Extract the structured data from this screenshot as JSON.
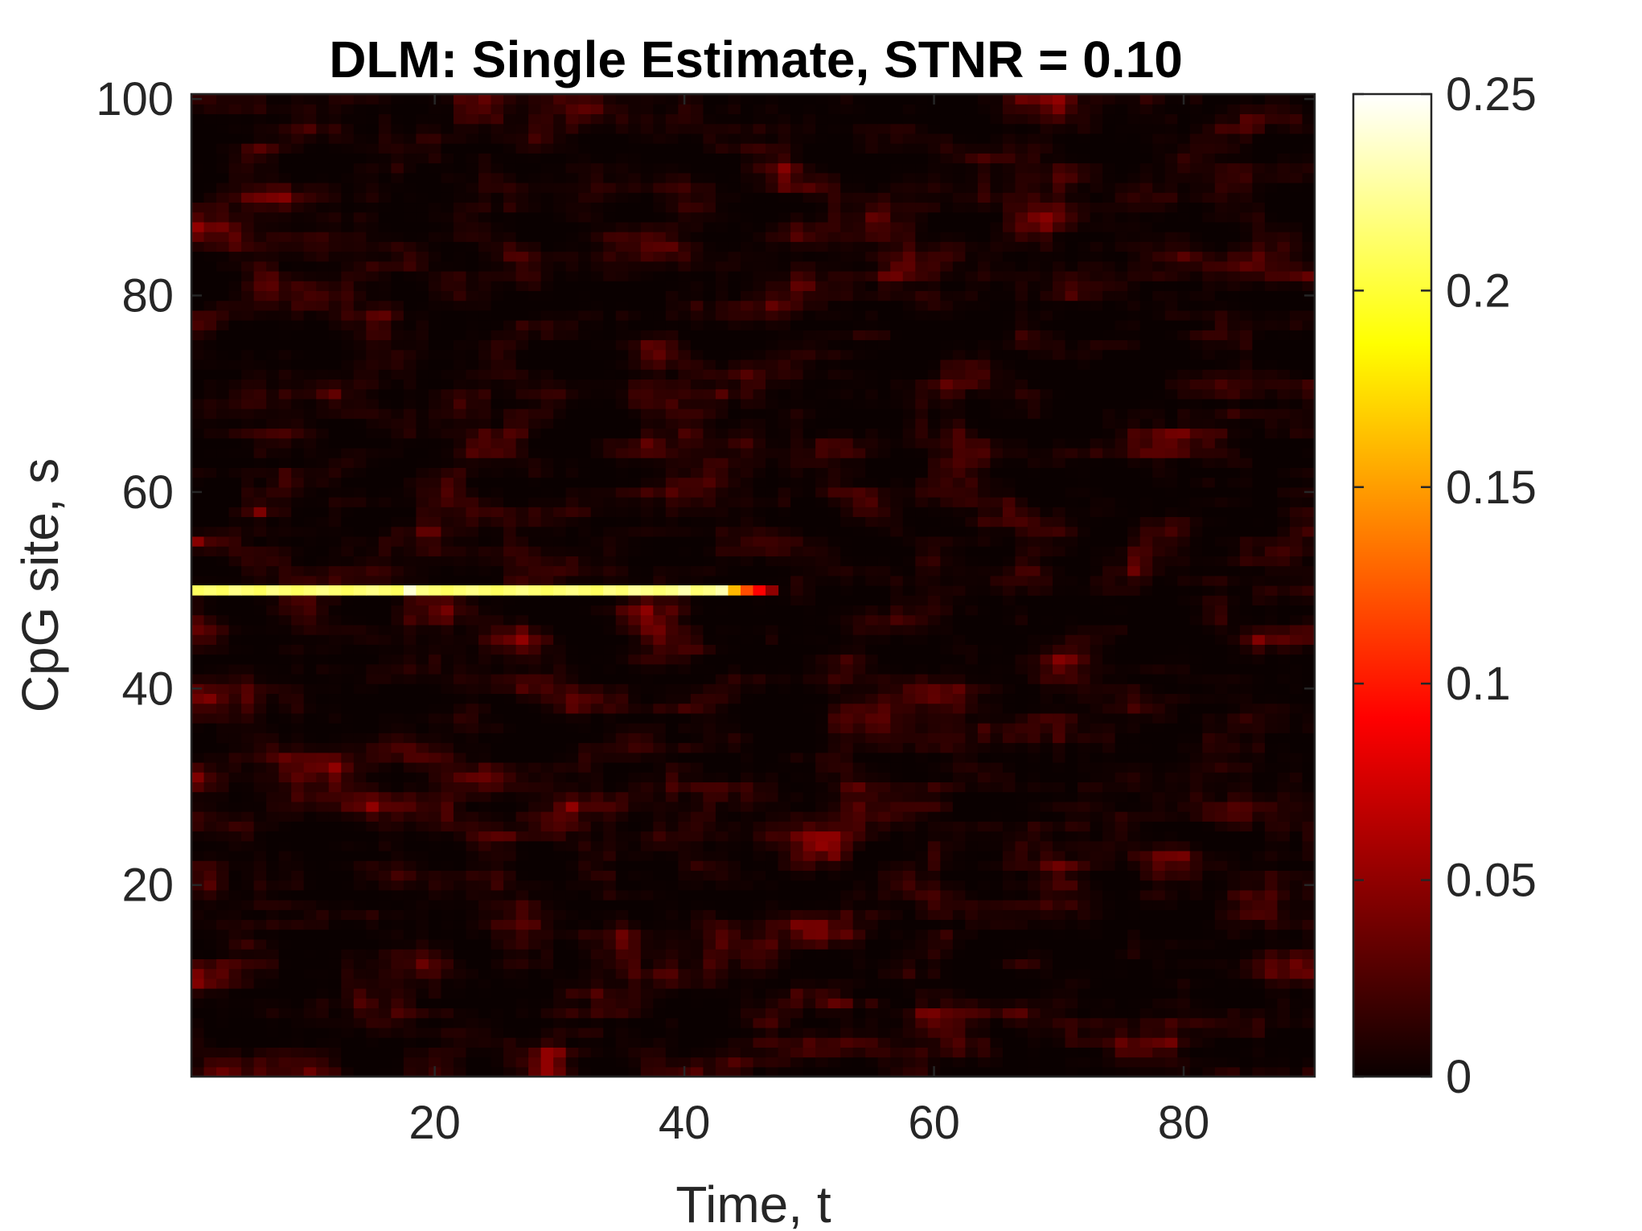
{
  "chart_data": {
    "type": "heatmap",
    "title": "DLM: Single Estimate, STNR = 0.10",
    "xlabel": "Time, t",
    "ylabel": "CpG site, s",
    "xlim": [
      0.5,
      90.5
    ],
    "ylim": [
      0.5,
      100.5
    ],
    "n_time": 90,
    "n_sites": 100,
    "x_ticks": [
      "20",
      "40",
      "60",
      "80"
    ],
    "x_tick_values": [
      20,
      40,
      60,
      80
    ],
    "y_ticks": [
      "20",
      "40",
      "60",
      "80",
      "100"
    ],
    "y_tick_values": [
      20,
      40,
      60,
      80,
      100
    ],
    "colormap": "hot",
    "colorbar": {
      "range": [
        0,
        0.25
      ],
      "ticks": [
        "0",
        "0.05",
        "0.1",
        "0.15",
        "0.2",
        "0.25"
      ],
      "tick_values": [
        0,
        0.05,
        0.1,
        0.15,
        0.2,
        0.25
      ]
    },
    "background_level_range": [
      0,
      0.05
    ],
    "signal": {
      "site": 50,
      "t_start": 1,
      "t_end": 47,
      "values": [
        0.21,
        0.215,
        0.21,
        0.22,
        0.215,
        0.21,
        0.22,
        0.215,
        0.21,
        0.215,
        0.22,
        0.215,
        0.21,
        0.215,
        0.22,
        0.215,
        0.21,
        0.24,
        0.22,
        0.215,
        0.21,
        0.215,
        0.22,
        0.215,
        0.21,
        0.215,
        0.22,
        0.215,
        0.21,
        0.215,
        0.22,
        0.215,
        0.21,
        0.22,
        0.215,
        0.225,
        0.22,
        0.215,
        0.22,
        0.23,
        0.215,
        0.22,
        0.23,
        0.16,
        0.12,
        0.09,
        0.05
      ]
    },
    "grid": false,
    "legend": "none"
  }
}
